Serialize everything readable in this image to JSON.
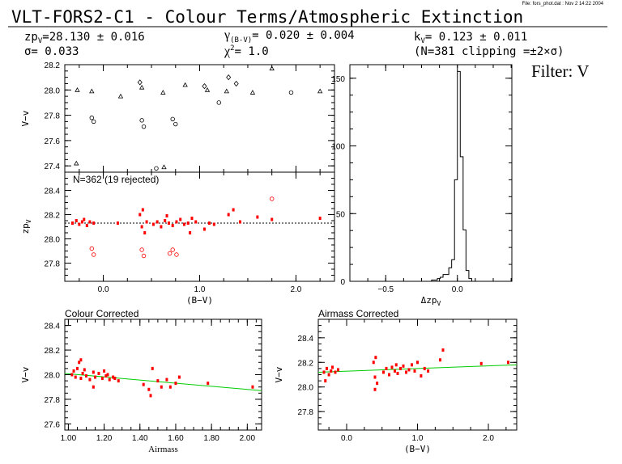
{
  "header": {
    "file_label": "File: fors_phot.dat : Nov  2 14:22 2004",
    "title": "VLT-FORS2-C1 - Colour Terms/Atmospheric Extinction",
    "zp_label": "zp",
    "zp_sub": "V",
    "zp_value": "=28.130 ± 0.016",
    "gamma_label": "γ",
    "gamma_sub": "(B-V)",
    "gamma_value": "= 0.020 ± 0.004",
    "k_label": "k",
    "k_sub": "V",
    "k_value": "= 0.123 ± 0.011",
    "sigma_text": "σ= 0.033",
    "chi_label": "χ",
    "chi_sup": "2",
    "chi_value": "=  1.0",
    "clip_text": "(N=381 clipping =±2×σ)",
    "filter_text": "Filter: V"
  },
  "chart_data": [
    {
      "id": "vv_vs_bv",
      "type": "scatter",
      "ylabel": "V−v",
      "xlim": [
        -0.4,
        2.4
      ],
      "ylim": [
        27.35,
        28.2
      ],
      "yticks": [
        "27.4",
        "27.6",
        "27.8",
        "28.0",
        "28.2"
      ],
      "series": [
        {
          "marker": "triangle",
          "x": [
            -0.27,
            -0.12,
            0.18,
            0.4,
            0.62,
            0.85,
            1.08,
            1.28,
            1.55,
            1.75,
            2.25,
            -0.28,
            0.63
          ],
          "y": [
            28.0,
            27.99,
            27.95,
            28.02,
            27.98,
            28.04,
            28.0,
            27.99,
            27.98,
            28.17,
            27.99,
            27.42,
            27.39
          ]
        },
        {
          "marker": "circle",
          "x": [
            -0.12,
            -0.1,
            0.4,
            0.42,
            0.72,
            0.75,
            0.55,
            1.2,
            1.95
          ],
          "y": [
            27.78,
            27.75,
            27.76,
            27.71,
            27.77,
            27.73,
            27.38,
            27.9,
            27.98
          ]
        },
        {
          "marker": "diamond",
          "x": [
            0.38,
            1.05,
            1.3,
            1.38
          ],
          "y": [
            28.06,
            28.03,
            28.1,
            28.05
          ]
        }
      ]
    },
    {
      "id": "zp_vs_bv",
      "type": "scatter",
      "annotation": "N=362 (19 rejected)",
      "ylabel": "zp",
      "ylabel_sub": "V",
      "xlabel": "(B−V)",
      "xlim": [
        -0.4,
        2.4
      ],
      "ylim": [
        27.65,
        28.55
      ],
      "yticks": [
        "27.8",
        "28.0",
        "28.2",
        "28.4"
      ],
      "xticks": [
        "0.0",
        "1.0",
        "2.0"
      ],
      "fit_line": {
        "y": 28.13
      },
      "color": "#ff0000",
      "series": [
        {
          "marker": "filled",
          "x": [
            -0.32,
            -0.28,
            -0.25,
            -0.22,
            -0.2,
            -0.17,
            -0.14,
            -0.1,
            0.15,
            0.38,
            0.4,
            0.41,
            0.43,
            0.45,
            0.52,
            0.56,
            0.6,
            0.64,
            0.68,
            0.72,
            0.76,
            0.8,
            0.84,
            0.88,
            0.92,
            0.96,
            1.05,
            1.1,
            1.15,
            1.3,
            1.42,
            1.6,
            1.75,
            2.25,
            1.35,
            0.9,
            0.66
          ],
          "y": [
            28.13,
            28.15,
            28.12,
            28.14,
            28.16,
            28.11,
            28.14,
            28.13,
            28.13,
            28.2,
            28.1,
            28.24,
            28.05,
            28.14,
            28.12,
            28.14,
            28.1,
            28.15,
            28.13,
            28.11,
            28.14,
            28.16,
            28.12,
            28.13,
            28.17,
            28.14,
            28.08,
            28.13,
            28.12,
            28.2,
            28.14,
            28.18,
            28.16,
            28.17,
            28.24,
            28.05,
            28.19
          ]
        },
        {
          "marker": "open",
          "x": [
            -0.12,
            -0.1,
            0.4,
            0.42,
            0.72,
            0.76,
            0.69,
            1.75
          ],
          "y": [
            27.92,
            27.87,
            27.91,
            27.86,
            27.91,
            27.87,
            27.88,
            28.33
          ]
        }
      ]
    },
    {
      "id": "histogram",
      "type": "bar",
      "xlabel": "Δzp",
      "xlabel_sub": "V",
      "xlim": [
        -0.75,
        0.38
      ],
      "ylim": [
        0,
        160
      ],
      "yticks": [
        "0",
        "50",
        "100",
        "150"
      ],
      "xticks": [
        "−0.5",
        "0.0"
      ],
      "bin_width": 0.02,
      "bin_starts": [
        -0.18,
        -0.16,
        -0.14,
        -0.12,
        -0.1,
        -0.08,
        -0.06,
        -0.04,
        -0.02,
        0.0,
        0.02,
        0.04,
        0.06,
        0.08
      ],
      "values": [
        1,
        1,
        2,
        3,
        5,
        5,
        10,
        16,
        75,
        155,
        92,
        38,
        8,
        2
      ]
    },
    {
      "id": "colour_corrected",
      "type": "scatter",
      "title": "Colour Corrected",
      "ylabel": "V−v",
      "xlabel": "Airmass",
      "xlim": [
        0.98,
        2.08
      ],
      "ylim": [
        27.55,
        28.45
      ],
      "yticks": [
        "27.6",
        "27.8",
        "28.0",
        "28.2",
        "28.4"
      ],
      "xticks": [
        "1.00",
        "1.20",
        "1.40",
        "1.60",
        "1.80",
        "2.00"
      ],
      "fit_line": {
        "x": [
          0.98,
          2.08
        ],
        "y": [
          28.01,
          27.87
        ]
      },
      "color": "#ff0000",
      "fit_color": "#00cc00",
      "series": [
        {
          "marker": "filled",
          "x": [
            1.02,
            1.03,
            1.04,
            1.05,
            1.06,
            1.07,
            1.08,
            1.09,
            1.1,
            1.12,
            1.14,
            1.15,
            1.17,
            1.19,
            1.2,
            1.21,
            1.22,
            1.23,
            1.25,
            1.26,
            1.28,
            1.42,
            1.45,
            1.47,
            1.5,
            1.52,
            1.55,
            1.57,
            1.6,
            1.62,
            1.78,
            2.03,
            1.07,
            1.14,
            1.46
          ],
          "y": [
            28.0,
            28.03,
            27.98,
            28.05,
            28.1,
            27.97,
            28.01,
            28.04,
            27.99,
            27.96,
            28.02,
            27.98,
            28.01,
            27.97,
            28.03,
            27.99,
            28.0,
            27.96,
            27.98,
            27.97,
            27.95,
            27.92,
            27.88,
            28.05,
            27.95,
            27.9,
            27.96,
            27.9,
            27.93,
            27.98,
            27.93,
            27.9,
            28.12,
            27.9,
            27.83
          ]
        }
      ]
    },
    {
      "id": "airmass_corrected",
      "type": "scatter",
      "title": "Airmass Corrected",
      "ylabel": "V−v",
      "xlabel": "(B−V)",
      "xlim": [
        -0.4,
        2.4
      ],
      "ylim": [
        27.65,
        28.55
      ],
      "yticks": [
        "27.8",
        "28.0",
        "28.2",
        "28.4"
      ],
      "xticks": [
        "0.0",
        "1.0",
        "2.0"
      ],
      "fit_line": {
        "x": [
          -0.4,
          2.4
        ],
        "y": [
          28.12,
          28.18
        ]
      },
      "color": "#ff0000",
      "fit_color": "#00cc00",
      "series": [
        {
          "marker": "filled",
          "x": [
            -0.32,
            -0.28,
            -0.25,
            -0.22,
            -0.2,
            -0.16,
            -0.12,
            0.38,
            0.4,
            0.41,
            0.43,
            0.52,
            0.56,
            0.6,
            0.64,
            0.68,
            0.72,
            0.76,
            0.8,
            0.84,
            0.88,
            0.92,
            0.96,
            1.05,
            1.1,
            1.15,
            1.32,
            1.36,
            1.9,
            2.28,
            -0.3,
            0.4,
            0.7,
            1.0
          ],
          "y": [
            28.12,
            28.15,
            28.1,
            28.13,
            28.16,
            28.12,
            28.14,
            28.2,
            28.08,
            28.24,
            28.03,
            28.12,
            28.15,
            28.1,
            28.16,
            28.13,
            28.11,
            28.15,
            28.17,
            28.12,
            28.14,
            28.18,
            28.13,
            28.09,
            28.15,
            28.13,
            28.22,
            28.3,
            28.19,
            28.2,
            28.05,
            27.98,
            28.18,
            28.2
          ]
        }
      ]
    }
  ]
}
